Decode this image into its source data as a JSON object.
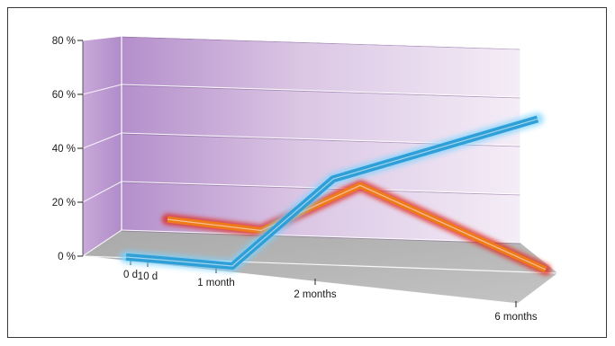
{
  "chart_data": {
    "type": "line",
    "style": "3d-perspective-ribbon",
    "x": [
      "0 d",
      "10 d",
      "1 month",
      "2 months",
      "6 months"
    ],
    "y_ticks": [
      "0 %",
      "20 %",
      "40 %",
      "60 %",
      "80 %"
    ],
    "ylim": [
      0,
      80
    ],
    "grid": true,
    "legend": "none",
    "series": [
      {
        "color": "#1f98d6",
        "values": [
          0,
          0,
          0,
          44,
          58
        ]
      },
      {
        "color": "#e8601c",
        "values": [
          null,
          7,
          5,
          31,
          0
        ]
      }
    ]
  },
  "colors": {
    "back_wall_left": "#b48fcb",
    "back_wall_right": "#f3ecf6",
    "floor": "#b8b8b8",
    "blue_ribbon": "#2f9fd8",
    "orange_ribbon": "#ef7a1a",
    "orange_glow": "#e0281e"
  }
}
